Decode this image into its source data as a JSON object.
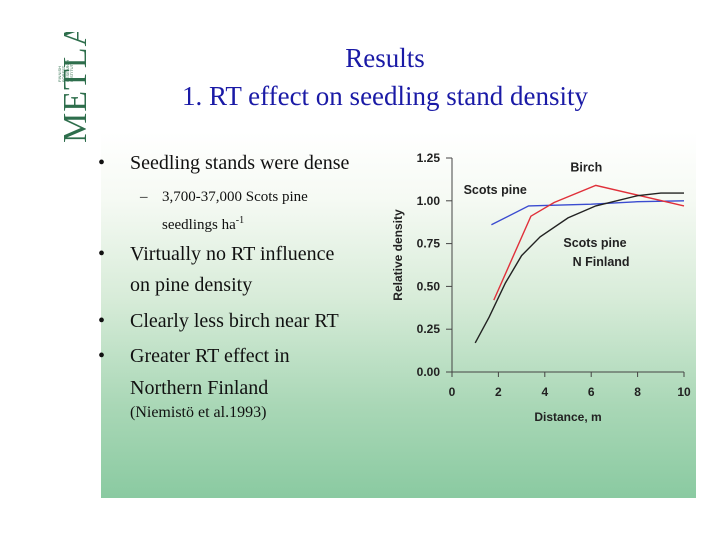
{
  "logo": {
    "text": "METLA",
    "lines": [
      "FINNISH",
      "FOREST",
      "RESEARCH",
      "INSTITUTE"
    ],
    "color": "#2e6e4c"
  },
  "title": {
    "line1": "Results",
    "line2": "1. RT effect on seedling stand density"
  },
  "bullets": {
    "b1": "Seedling stands were dense",
    "b1_sub_line1": "3,700-37,000 Scots pine",
    "b1_sub_line2_prefix": "seedlings ha",
    "b1_sub_line2_sup": "-1",
    "b2_line1": "Virtually no RT influence",
    "b2_line2": "on pine density",
    "b3": "Clearly less birch near RT",
    "b4_line1": "Greater RT effect in",
    "b4_line2": "Northern Finland",
    "citation": "(Niemistö et al.1993)",
    "bullet_char": "•",
    "dash_char": "–"
  },
  "chart_data": {
    "type": "line",
    "xlabel": "Distance, m",
    "ylabel": "Relative density",
    "xlim": [
      0,
      10
    ],
    "ylim": [
      0,
      1.25
    ],
    "x_ticks": [
      0,
      2,
      4,
      6,
      8,
      10
    ],
    "y_ticks": [
      0.0,
      0.25,
      0.5,
      0.75,
      1.0,
      1.25
    ],
    "x_tick_labels": [
      "0",
      "2",
      "4",
      "6",
      "8",
      "10"
    ],
    "y_tick_labels": [
      "0.00",
      "0.25",
      "0.50",
      "0.75",
      "1.00",
      "1.25"
    ],
    "grid": false,
    "series": [
      {
        "color": "#3a4bd0",
        "points": [
          [
            1.7,
            0.86
          ],
          [
            3.3,
            0.97
          ],
          [
            6.0,
            0.98
          ],
          [
            8.0,
            0.995
          ],
          [
            10.0,
            1.0
          ]
        ]
      },
      {
        "color": "#e0303a",
        "points": [
          [
            1.8,
            0.42
          ],
          [
            3.4,
            0.91
          ],
          [
            4.4,
            0.99
          ],
          [
            6.2,
            1.09
          ],
          [
            10.0,
            0.97
          ]
        ]
      },
      {
        "color": "#222222",
        "points": [
          [
            1.0,
            0.17
          ],
          [
            1.6,
            0.32
          ],
          [
            2.3,
            0.52
          ],
          [
            3.0,
            0.68
          ],
          [
            3.8,
            0.79
          ],
          [
            5.0,
            0.9
          ],
          [
            6.2,
            0.97
          ],
          [
            8.0,
            1.03
          ],
          [
            9.0,
            1.045
          ],
          [
            10.0,
            1.045
          ]
        ]
      }
    ],
    "annotations": [
      {
        "text": "Birch",
        "x": 5.1,
        "y": 1.17
      },
      {
        "text": "Scots pine",
        "x": 0.5,
        "y": 1.04
      },
      {
        "text": "Scots pine",
        "x": 4.8,
        "y": 0.73
      },
      {
        "text": "N Finland",
        "x": 5.2,
        "y": 0.62
      }
    ]
  }
}
